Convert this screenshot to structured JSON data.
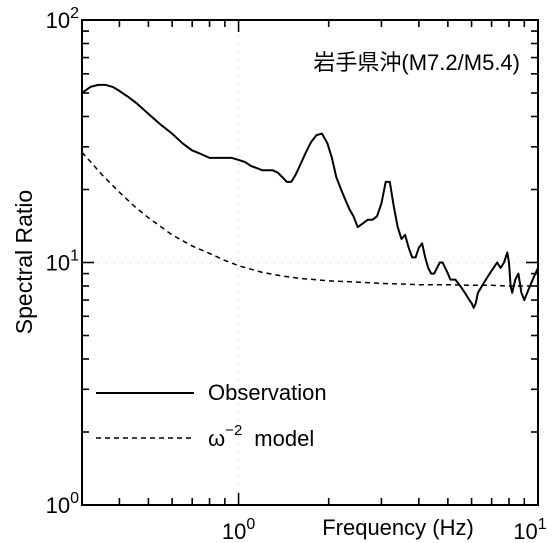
{
  "chart_data": {
    "type": "line",
    "title": "岩手県沖(M7.2/M5.4)",
    "xlabel": "Frequency (Hz)",
    "ylabel": "Spectral Ratio",
    "xscale": "log",
    "yscale": "log",
    "xlim": [
      0.3,
      10
    ],
    "ylim": [
      1,
      100
    ],
    "x_ticks": [
      {
        "value": 1,
        "base": "10",
        "exp": "0"
      },
      {
        "value": 10,
        "base": "10",
        "exp": "1"
      }
    ],
    "y_ticks": [
      {
        "value": 1,
        "base": "10",
        "exp": "0"
      },
      {
        "value": 10,
        "base": "10",
        "exp": "1"
      },
      {
        "value": 100,
        "base": "10",
        "exp": "2"
      }
    ],
    "legend_position": "bottom-left",
    "series": [
      {
        "name": "Observation",
        "style": "solid",
        "x": [
          0.3,
          0.32,
          0.34,
          0.36,
          0.38,
          0.4,
          0.43,
          0.46,
          0.5,
          0.55,
          0.6,
          0.65,
          0.7,
          0.75,
          0.8,
          0.85,
          0.9,
          0.95,
          1.0,
          1.05,
          1.1,
          1.15,
          1.2,
          1.25,
          1.3,
          1.35,
          1.4,
          1.45,
          1.5,
          1.55,
          1.6,
          1.68,
          1.75,
          1.82,
          1.9,
          1.98,
          2.05,
          2.12,
          2.2,
          2.28,
          2.35,
          2.42,
          2.5,
          2.6,
          2.7,
          2.8,
          2.9,
          3.0,
          3.1,
          3.2,
          3.3,
          3.4,
          3.5,
          3.6,
          3.7,
          3.8,
          3.9,
          4.0,
          4.1,
          4.2,
          4.3,
          4.4,
          4.5,
          4.6,
          4.7,
          4.8,
          4.9,
          5.0,
          5.1,
          5.3,
          5.5,
          5.7,
          5.9,
          6.0,
          6.1,
          6.2,
          6.3,
          6.5,
          6.7,
          6.9,
          7.1,
          7.3,
          7.5,
          7.7,
          7.9,
          8.0,
          8.1,
          8.2,
          8.4,
          8.6,
          8.8,
          9.0,
          9.2,
          9.4,
          9.6,
          9.8,
          10.0
        ],
        "y": [
          50,
          53,
          54,
          54,
          53,
          51,
          48,
          45,
          41,
          37,
          34,
          31,
          29,
          28,
          27,
          27,
          27,
          27,
          26.5,
          26,
          25,
          24.5,
          24,
          24,
          24,
          23.5,
          22.5,
          21.5,
          21.5,
          23,
          25,
          28.5,
          31.5,
          33.5,
          34,
          31,
          27,
          22.5,
          20,
          18,
          16.5,
          15.5,
          14,
          14.5,
          15,
          15,
          15.5,
          17.5,
          21.5,
          21.5,
          17,
          14,
          12.5,
          13,
          11.5,
          10.5,
          10.5,
          11.5,
          12,
          10.5,
          9.5,
          9,
          9,
          9.5,
          10,
          10,
          9.5,
          9,
          8.5,
          8.5,
          8,
          7.5,
          7,
          6.8,
          6.5,
          6.8,
          7.5,
          8,
          8.5,
          9,
          9.5,
          10,
          9.5,
          10,
          11,
          10,
          8,
          7.5,
          8.5,
          9,
          7.5,
          7,
          7.5,
          8,
          8.5,
          9,
          9.5
        ]
      },
      {
        "name": "ω⁻² model",
        "style": "dashed",
        "x": [
          0.3,
          0.35,
          0.4,
          0.45,
          0.5,
          0.6,
          0.7,
          0.8,
          0.9,
          1.0,
          1.2,
          1.4,
          1.6,
          1.8,
          2.0,
          2.5,
          3.0,
          3.5,
          4.0,
          5.0,
          6.0,
          7.0,
          8.0,
          9.0,
          10.0
        ],
        "y": [
          28.5,
          23,
          19.5,
          17,
          15.3,
          13,
          11.7,
          10.9,
          10.2,
          9.7,
          9.1,
          8.8,
          8.6,
          8.5,
          8.4,
          8.3,
          8.2,
          8.15,
          8.1,
          8.1,
          8.05,
          8.05,
          8.0,
          8.0,
          8.0
        ]
      }
    ],
    "legend": [
      {
        "label_text": "Observation",
        "style": "solid"
      },
      {
        "label_base": "ω",
        "label_exp": "−2",
        "label_suffix": "model",
        "style": "dashed"
      }
    ]
  }
}
